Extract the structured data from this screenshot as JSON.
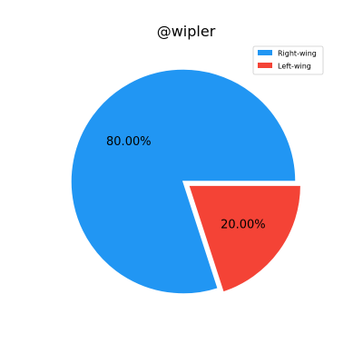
{
  "chart_data": {
    "type": "pie",
    "title": "@wipler",
    "categories": [
      "Right-wing",
      "Left-wing"
    ],
    "values": [
      80,
      20
    ],
    "labels": [
      "80.00%",
      "20.00%"
    ],
    "colors": [
      "#2196F3",
      "#F44336"
    ],
    "explode": [
      0,
      1
    ],
    "legend_position": "top-right"
  }
}
